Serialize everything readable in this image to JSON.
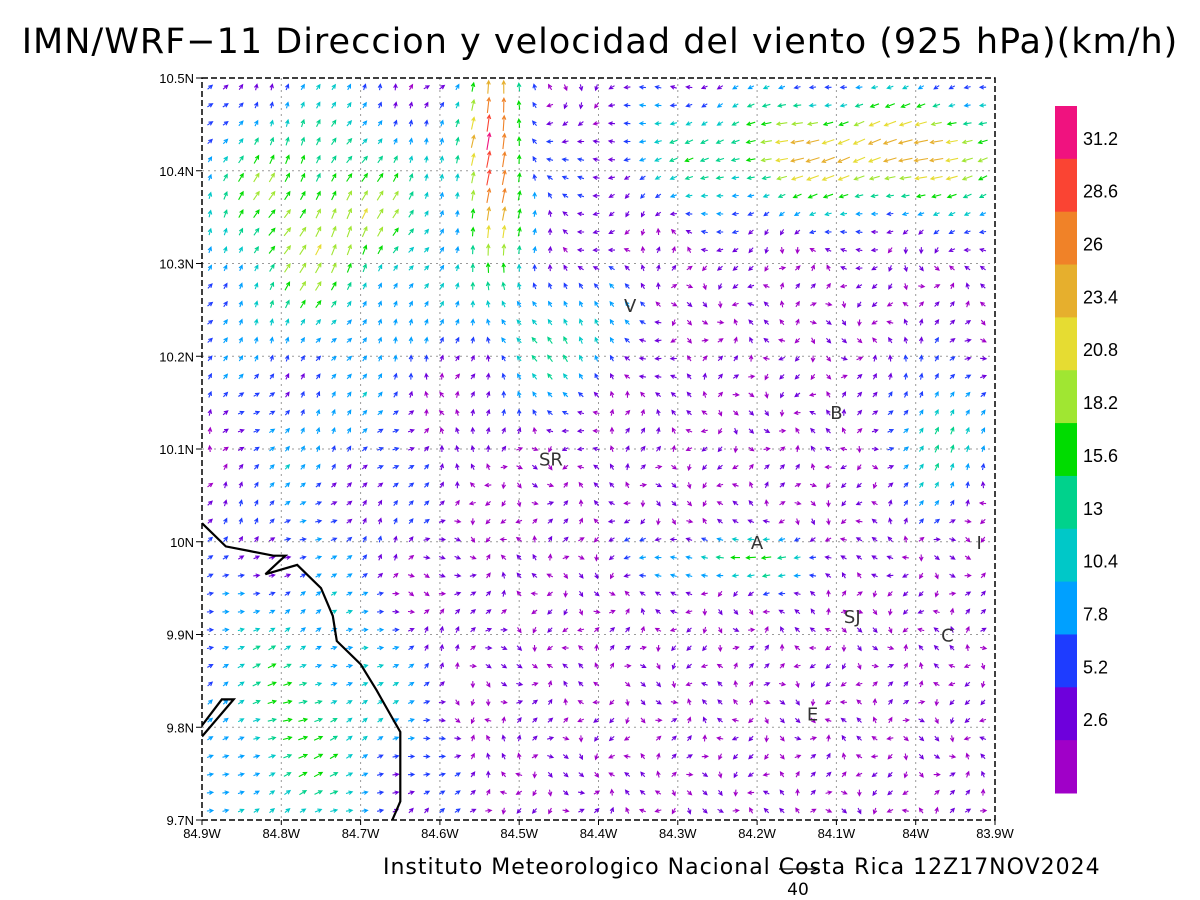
{
  "title": "IMN/WRF−11 Direccion y velocidad del viento (925 hPa)(km/h)",
  "credit": "Instituto Meteorologico Nacional Costa Rica 12Z17NOV2024",
  "reference_vector": {
    "value": "40"
  },
  "lat_labels": [
    "10.5N",
    "10.4N",
    "10.3N",
    "10.2N",
    "10.1N",
    "10N",
    "9.9N",
    "9.8N",
    "9.7N"
  ],
  "lon_labels": [
    "84.9W",
    "84.8W",
    "84.7W",
    "84.6W",
    "84.5W",
    "84.4W",
    "84.3W",
    "84.2W",
    "84.1W",
    "84W",
    "83.9W"
  ],
  "cities": [
    {
      "label": "V",
      "lon": -84.36,
      "lat": 10.255
    },
    {
      "label": "B",
      "lon": -84.1,
      "lat": 10.14
    },
    {
      "label": "SR",
      "lon": -84.46,
      "lat": 10.09
    },
    {
      "label": "A",
      "lon": -84.2,
      "lat": 10.0
    },
    {
      "label": "I",
      "lon": -83.92,
      "lat": 10.0
    },
    {
      "label": "SJ",
      "lon": -84.08,
      "lat": 9.92
    },
    {
      "label": "C",
      "lon": -83.96,
      "lat": 9.9
    },
    {
      "label": "E",
      "lon": -84.13,
      "lat": 9.815
    }
  ],
  "colorbar": {
    "labels": [
      "31.2",
      "28.6",
      "26",
      "23.4",
      "20.8",
      "18.2",
      "15.6",
      "13",
      "10.4",
      "7.8",
      "5.2",
      "2.6"
    ],
    "colors": [
      "#f0127f",
      "#fa4433",
      "#f08228",
      "#e6af2d",
      "#e6dc32",
      "#a0e632",
      "#00dc00",
      "#00d28c",
      "#00c8c8",
      "#00a0ff",
      "#1e3cff",
      "#6e00dc",
      "#a000c8"
    ]
  },
  "map": {
    "lon_range": [
      -84.9,
      -83.9
    ],
    "lat_range": [
      9.7,
      10.5
    ],
    "coastline": [
      [
        -84.9,
        10.02
      ],
      [
        -84.87,
        9.995
      ],
      [
        -84.84,
        9.99
      ],
      [
        -84.81,
        9.985
      ],
      [
        -84.795,
        9.985
      ],
      [
        -84.82,
        9.965
      ],
      [
        -84.78,
        9.975
      ],
      [
        -84.75,
        9.95
      ],
      [
        -84.735,
        9.92
      ],
      [
        -84.73,
        9.893
      ],
      [
        -84.7,
        9.868
      ],
      [
        -84.68,
        9.84
      ],
      [
        -84.66,
        9.81
      ],
      [
        -84.65,
        9.795
      ],
      [
        -84.65,
        9.72
      ],
      [
        -84.66,
        9.7
      ]
    ],
    "coastline2": [
      [
        -84.9,
        9.802
      ],
      [
        -84.875,
        9.83
      ],
      [
        -84.86,
        9.83
      ],
      [
        -84.9,
        9.79
      ]
    ],
    "wind_field": {
      "grid_spacing_deg": 0.02,
      "description_regions": [
        {
          "name": "northwest_jet",
          "from": "south-southwest",
          "speed_kmh": 22
        },
        {
          "name": "north_central_jet",
          "from": "south",
          "speed_kmh": 33
        },
        {
          "name": "northeast_band",
          "from": "east",
          "speed_kmh": 24
        },
        {
          "name": "southwest_onshore",
          "from": "southwest",
          "speed_kmh": 14
        },
        {
          "name": "central_valley_easterly",
          "from": "east",
          "speed_kmh": 14
        },
        {
          "name": "interior_light",
          "from": "variable",
          "speed_kmh": 4
        }
      ]
    }
  }
}
